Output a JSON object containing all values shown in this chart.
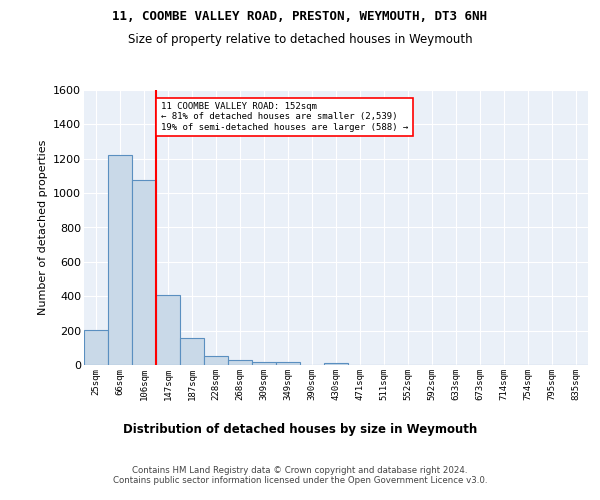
{
  "title1": "11, COOMBE VALLEY ROAD, PRESTON, WEYMOUTH, DT3 6NH",
  "title2": "Size of property relative to detached houses in Weymouth",
  "xlabel": "Distribution of detached houses by size in Weymouth",
  "ylabel": "Number of detached properties",
  "bar_labels": [
    "25sqm",
    "66sqm",
    "106sqm",
    "147sqm",
    "187sqm",
    "228sqm",
    "268sqm",
    "309sqm",
    "349sqm",
    "390sqm",
    "430sqm",
    "471sqm",
    "511sqm",
    "552sqm",
    "592sqm",
    "633sqm",
    "673sqm",
    "714sqm",
    "754sqm",
    "795sqm",
    "835sqm"
  ],
  "bar_values": [
    205,
    1220,
    1075,
    410,
    160,
    50,
    27,
    20,
    15,
    0,
    12,
    0,
    0,
    0,
    0,
    0,
    0,
    0,
    0,
    0,
    0
  ],
  "bar_color": "#c9d9e8",
  "bar_edge_color": "#5a8fc0",
  "annotation_text": "11 COOMBE VALLEY ROAD: 152sqm\n← 81% of detached houses are smaller (2,539)\n19% of semi-detached houses are larger (588) →",
  "ylim": [
    0,
    1600
  ],
  "yticks": [
    0,
    200,
    400,
    600,
    800,
    1000,
    1200,
    1400,
    1600
  ],
  "footer": "Contains HM Land Registry data © Crown copyright and database right 2024.\nContains public sector information licensed under the Open Government Licence v3.0.",
  "background_color": "#ffffff",
  "plot_bg_color": "#eaf0f8"
}
